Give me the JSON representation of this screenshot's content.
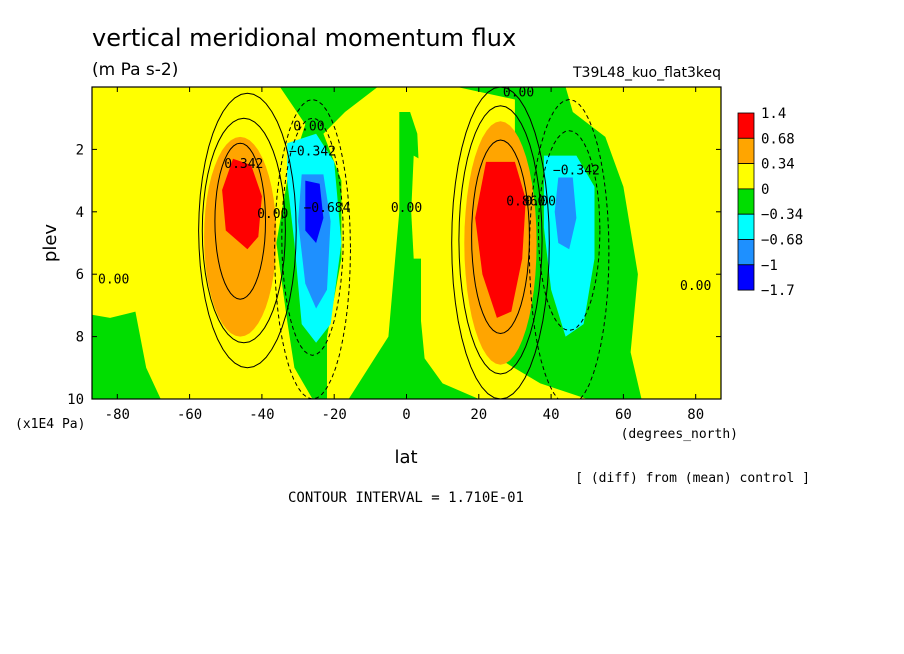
{
  "chart_data": {
    "type": "heatmap",
    "title": "vertical meridional momentum flux",
    "units": "(m Pa s-2)",
    "experiment": "T39L48_kuo_flat3keq",
    "xlabel": "lat",
    "xunits": "(degrees_north)",
    "ylabel": "plev",
    "yunits": "(x1E4 Pa)",
    "xlim": [
      -87,
      87
    ],
    "ylim": [
      10,
      0
    ],
    "x_ticks": [
      -80,
      -60,
      -40,
      -20,
      0,
      20,
      40,
      60,
      80
    ],
    "y_ticks": [
      2,
      4,
      6,
      8,
      10
    ],
    "footnote": "[ (diff) from (mean) control ]",
    "contour_interval": "CONTOUR INTERVAL = 1.710E-01",
    "colorbar": {
      "levels": [
        "1.4",
        "0.68",
        "0.34",
        "0",
        "−0.34",
        "−0.68",
        "−1",
        "−1.7"
      ],
      "colors": [
        "#ff0000",
        "#ffa500",
        "#ffff00",
        "#00dd00",
        "#00ffff",
        "#1e90ff",
        "#0000ff"
      ]
    },
    "contour_labels": [
      {
        "text": "0.00",
        "lat": 31,
        "plev": 0.3
      },
      {
        "text": "0.00",
        "lat": -27,
        "plev": 1.4
      },
      {
        "text": "−0.342",
        "lat": -26,
        "plev": 2.2
      },
      {
        "text": "0.342",
        "lat": -45,
        "plev": 2.6
      },
      {
        "text": "−0.342",
        "lat": 47,
        "plev": 2.8
      },
      {
        "text": "0.00",
        "lat": -37,
        "plev": 4.2
      },
      {
        "text": "−0.684",
        "lat": -22,
        "plev": 4.0
      },
      {
        "text": "0.00",
        "lat": 0,
        "plev": 4.0
      },
      {
        "text": "0.860",
        "lat": 33,
        "plev": 3.8
      },
      {
        "text": "0.00",
        "lat": 37,
        "plev": 3.8
      },
      {
        "text": "0.00",
        "lat": -81,
        "plev": 6.3
      },
      {
        "text": "0.00",
        "lat": 80,
        "plev": 6.5
      }
    ]
  }
}
